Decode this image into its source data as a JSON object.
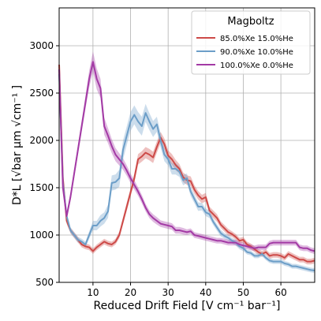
{
  "chart_data": {
    "type": "line",
    "xlabel": "Reduced Drift Field [V cm⁻¹ bar⁻¹]",
    "ylabel": "D*L [√bar μm √cm⁻¹ ]",
    "xlim": [
      1,
      69
    ],
    "ylim": [
      500,
      3400
    ],
    "x_ticks": [
      10,
      20,
      30,
      40,
      50,
      60
    ],
    "y_ticks": [
      500,
      1000,
      1500,
      2000,
      2500,
      3000
    ],
    "grid": true,
    "legend": {
      "title": "Magboltz",
      "placement": "top-right"
    },
    "series": [
      {
        "name": "85.0%Xe 15.0%He",
        "color": "#cd4a48",
        "x": [
          1,
          2,
          3,
          4,
          5,
          6,
          7,
          8,
          9,
          10,
          11,
          12,
          13,
          14,
          15,
          16,
          17,
          18,
          19,
          20,
          21,
          22,
          23,
          24,
          25,
          26,
          27,
          28,
          29,
          30,
          31,
          32,
          33,
          34,
          35,
          36,
          37,
          38,
          39,
          40,
          41,
          42,
          43,
          44,
          45,
          46,
          47,
          48,
          49,
          50,
          51,
          52,
          53,
          54,
          55,
          56,
          57,
          58,
          59,
          60,
          61,
          62,
          63,
          64,
          65,
          66,
          67,
          68,
          69
        ],
        "values": [
          2800,
          1600,
          1150,
          1050,
          1000,
          950,
          900,
          880,
          870,
          830,
          870,
          900,
          930,
          910,
          900,
          930,
          1000,
          1150,
          1300,
          1450,
          1600,
          1800,
          1830,
          1870,
          1850,
          1820,
          1930,
          2030,
          1960,
          1840,
          1800,
          1740,
          1700,
          1610,
          1580,
          1570,
          1480,
          1420,
          1380,
          1400,
          1260,
          1220,
          1180,
          1110,
          1070,
          1030,
          1010,
          980,
          940,
          950,
          900,
          880,
          850,
          820,
          800,
          820,
          780,
          790,
          790,
          780,
          760,
          800,
          780,
          760,
          740,
          740,
          720,
          720,
          730
        ],
        "band": [
          30,
          30,
          30,
          30,
          30,
          30,
          30,
          30,
          30,
          30,
          30,
          30,
          30,
          30,
          30,
          30,
          35,
          40,
          45,
          45,
          50,
          55,
          55,
          60,
          60,
          60,
          60,
          60,
          60,
          55,
          55,
          55,
          50,
          50,
          50,
          50,
          45,
          45,
          45,
          45,
          40,
          40,
          40,
          35,
          35,
          35,
          30,
          30,
          30,
          30,
          30,
          30,
          30,
          30,
          30,
          30,
          30,
          30,
          30,
          30,
          30,
          30,
          30,
          30,
          30,
          30,
          30,
          30,
          30
        ]
      },
      {
        "name": "90.0%Xe 10.0%He",
        "color": "#6c9ec8",
        "x": [
          1,
          2,
          3,
          4,
          5,
          6,
          7,
          8,
          9,
          10,
          11,
          12,
          13,
          14,
          15,
          16,
          17,
          18,
          19,
          20,
          21,
          22,
          23,
          24,
          25,
          26,
          27,
          28,
          29,
          30,
          31,
          32,
          33,
          34,
          35,
          36,
          37,
          38,
          39,
          40,
          41,
          42,
          43,
          44,
          45,
          46,
          47,
          48,
          49,
          50,
          51,
          52,
          53,
          54,
          55,
          56,
          57,
          58,
          59,
          60,
          61,
          62,
          63,
          64,
          65,
          66,
          67,
          68,
          69
        ],
        "values": [
          2700,
          1550,
          1200,
          1050,
          1000,
          950,
          930,
          900,
          1000,
          1100,
          1100,
          1150,
          1180,
          1250,
          1550,
          1560,
          1600,
          1900,
          2050,
          2200,
          2270,
          2200,
          2150,
          2290,
          2200,
          2120,
          2170,
          2000,
          1850,
          1800,
          1700,
          1700,
          1670,
          1580,
          1600,
          1460,
          1380,
          1300,
          1300,
          1240,
          1220,
          1140,
          1080,
          1020,
          990,
          970,
          940,
          920,
          880,
          860,
          820,
          810,
          780,
          780,
          800,
          760,
          730,
          720,
          720,
          720,
          700,
          690,
          670,
          670,
          660,
          650,
          640,
          630,
          625
        ],
        "band": [
          30,
          30,
          30,
          30,
          30,
          30,
          30,
          30,
          40,
          50,
          50,
          60,
          60,
          70,
          80,
          80,
          90,
          100,
          100,
          100,
          100,
          100,
          100,
          95,
          90,
          85,
          80,
          75,
          70,
          65,
          60,
          60,
          55,
          55,
          50,
          50,
          45,
          45,
          40,
          40,
          40,
          35,
          35,
          35,
          30,
          30,
          30,
          30,
          30,
          30,
          25,
          25,
          25,
          25,
          25,
          25,
          25,
          25,
          25,
          25,
          25,
          25,
          25,
          25,
          25,
          25,
          25,
          25,
          25
        ]
      },
      {
        "name": "100.0%Xe 0.0%He",
        "color": "#a33aa5",
        "x": [
          1,
          2,
          3,
          4,
          5,
          6,
          7,
          8,
          9,
          10,
          11,
          12,
          13,
          14,
          15,
          16,
          17,
          18,
          19,
          20,
          21,
          22,
          23,
          24,
          25,
          26,
          27,
          28,
          29,
          30,
          31,
          32,
          33,
          34,
          35,
          36,
          37,
          38,
          39,
          40,
          41,
          42,
          43,
          44,
          45,
          46,
          47,
          48,
          49,
          50,
          51,
          52,
          53,
          54,
          55,
          56,
          57,
          58,
          59,
          60,
          61,
          62,
          63,
          64,
          65,
          66,
          67,
          68,
          69
        ],
        "values": [
          2750,
          1500,
          1200,
          1400,
          1650,
          1900,
          2150,
          2400,
          2650,
          2830,
          2650,
          2550,
          2150,
          2050,
          1940,
          1850,
          1800,
          1750,
          1680,
          1600,
          1530,
          1460,
          1380,
          1290,
          1220,
          1180,
          1150,
          1120,
          1110,
          1100,
          1090,
          1050,
          1050,
          1040,
          1030,
          1040,
          1000,
          990,
          980,
          970,
          960,
          950,
          940,
          940,
          930,
          920,
          920,
          920,
          900,
          890,
          880,
          870,
          860,
          870,
          870,
          870,
          910,
          920,
          920,
          920,
          920,
          920,
          920,
          920,
          870,
          860,
          860,
          840,
          830
        ],
        "band": [
          40,
          40,
          40,
          45,
          50,
          55,
          60,
          70,
          90,
          110,
          110,
          100,
          90,
          80,
          75,
          70,
          65,
          60,
          55,
          50,
          50,
          45,
          45,
          40,
          40,
          40,
          40,
          35,
          35,
          35,
          35,
          35,
          35,
          35,
          30,
          30,
          30,
          30,
          30,
          30,
          30,
          30,
          30,
          30,
          30,
          30,
          30,
          30,
          30,
          30,
          30,
          30,
          30,
          30,
          30,
          30,
          30,
          30,
          30,
          30,
          30,
          30,
          30,
          30,
          30,
          30,
          30,
          30,
          30
        ]
      }
    ]
  }
}
